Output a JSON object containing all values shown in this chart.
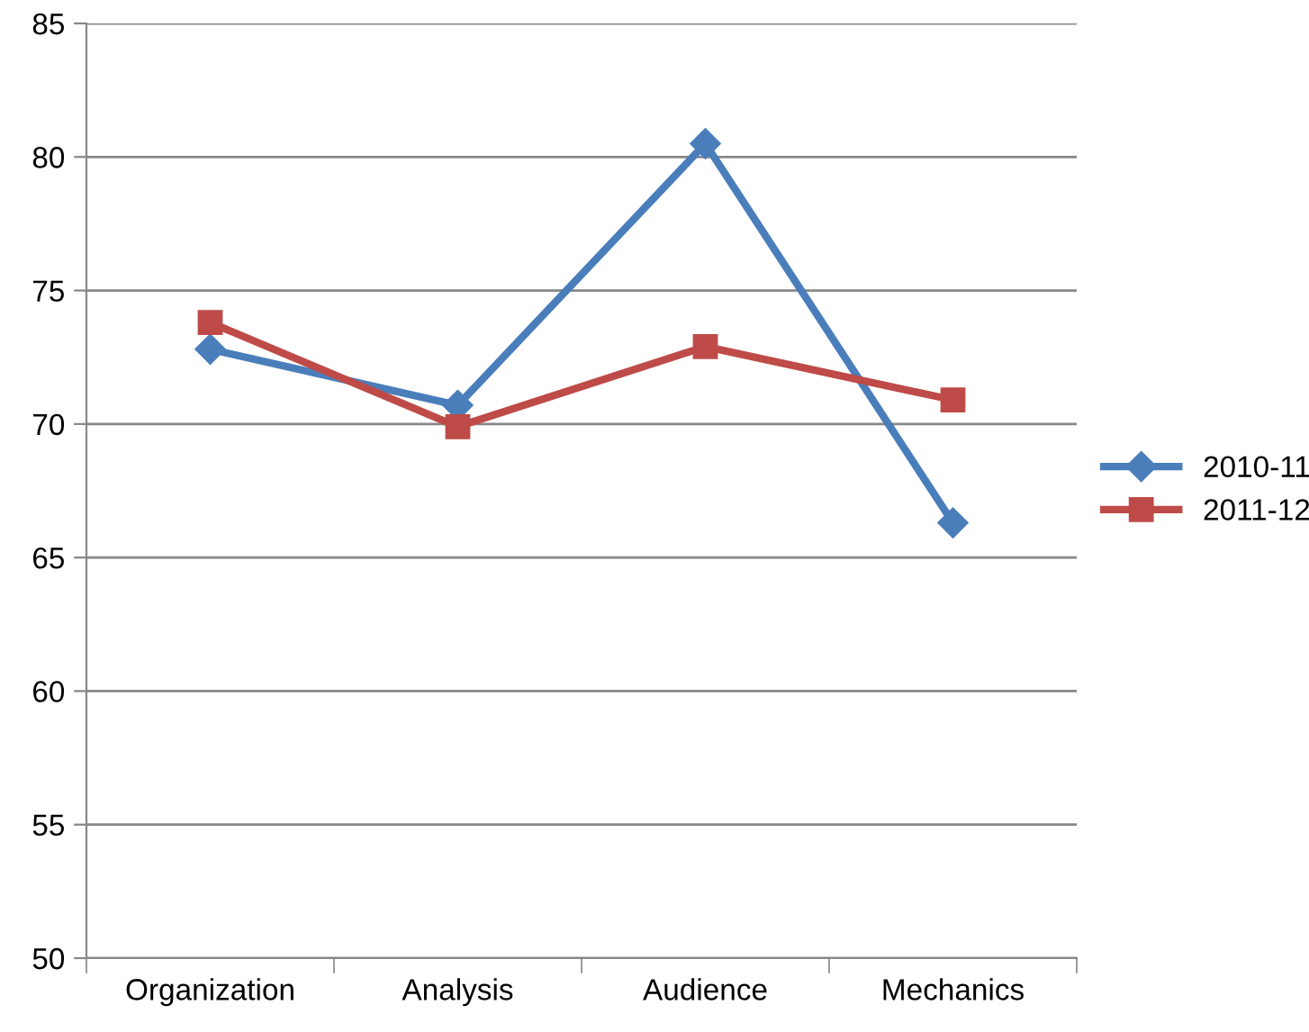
{
  "chart_data": {
    "type": "line",
    "categories": [
      "Organization",
      "Analysis",
      "Audience",
      "Mechanics"
    ],
    "series": [
      {
        "name": "2010-11",
        "color": "#4a7ebb",
        "values": [
          72.8,
          70.7,
          80.5,
          66.3
        ],
        "marker": "diamond"
      },
      {
        "name": "2011-12",
        "color": "#be4b48",
        "values": [
          73.8,
          69.9,
          72.9,
          70.9
        ],
        "marker": "square"
      }
    ],
    "ylim": [
      50,
      85
    ],
    "yticks": [
      50,
      55,
      60,
      65,
      70,
      75,
      80,
      85
    ],
    "grid": "y",
    "legend": "right",
    "line_style": "solid"
  }
}
